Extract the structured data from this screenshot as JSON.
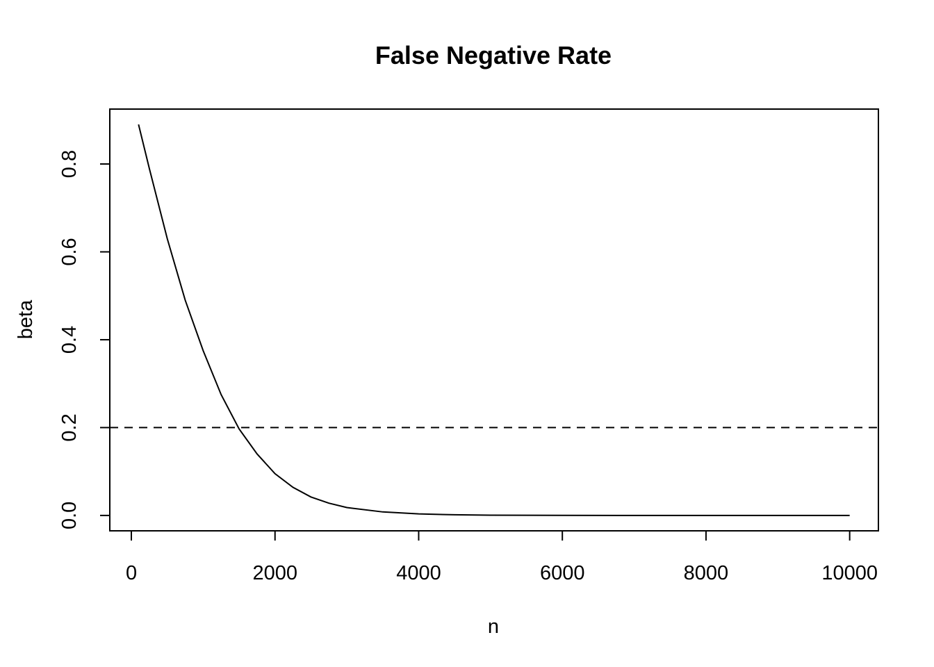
{
  "chart_data": {
    "type": "line",
    "title": "False Negative Rate",
    "xlabel": "n",
    "ylabel": "beta",
    "xlim": [
      -300,
      10400
    ],
    "ylim": [
      -0.035,
      0.925
    ],
    "x_ticks": [
      0,
      2000,
      4000,
      6000,
      8000,
      10000
    ],
    "x_tick_labels": [
      "0",
      "2000",
      "4000",
      "6000",
      "8000",
      "10000"
    ],
    "y_ticks": [
      0.0,
      0.2,
      0.4,
      0.6,
      0.8
    ],
    "y_tick_labels": [
      "0.0",
      "0.2",
      "0.4",
      "0.6",
      "0.8"
    ],
    "grid": false,
    "series": [
      {
        "line_style": "solid",
        "color": "#000000",
        "x": [
          100,
          250,
          500,
          750,
          1000,
          1250,
          1500,
          1750,
          2000,
          2250,
          2500,
          2750,
          3000,
          3500,
          4000,
          4500,
          5000,
          6000,
          7000,
          8000,
          9000,
          10000
        ],
        "y": [
          0.89,
          0.79,
          0.63,
          0.49,
          0.375,
          0.275,
          0.197,
          0.14,
          0.095,
          0.064,
          0.042,
          0.028,
          0.018,
          0.008,
          0.0035,
          0.0015,
          0.0006,
          0.0001,
          0.0,
          0.0,
          0.0,
          0.0
        ]
      }
    ],
    "reference_lines": [
      {
        "orientation": "horizontal",
        "y": 0.2,
        "line_style": "dashed",
        "color": "#000000"
      }
    ]
  }
}
